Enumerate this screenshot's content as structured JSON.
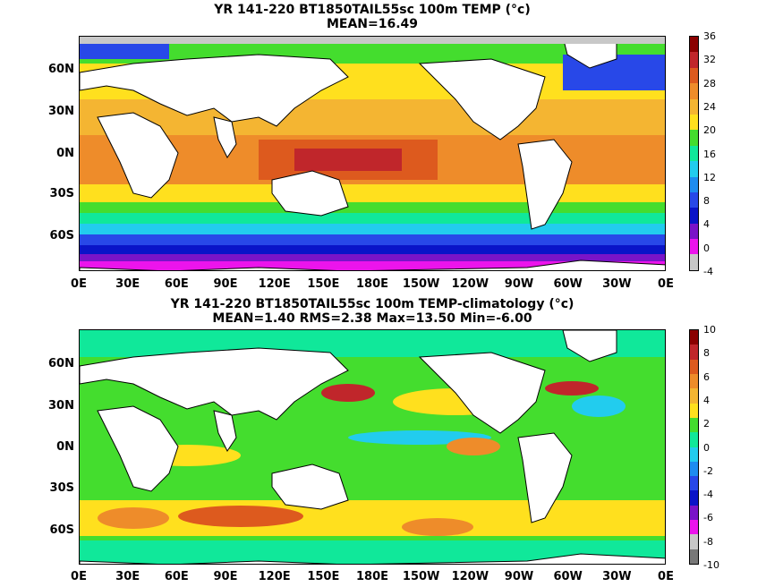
{
  "panels": [
    {
      "title_line1": "YR 141-220 BT1850TAIL55sc 100m TEMP (°c)",
      "title_line2": "MEAN=16.49",
      "colorbar_labels": [
        "36",
        "32",
        "28",
        "24",
        "20",
        "16",
        "12",
        "8",
        "4",
        "0",
        "-4"
      ],
      "colorbar_colors": [
        "#8b0000",
        "#c0262b",
        "#dd5a1e",
        "#ee8c2a",
        "#f4b532",
        "#ffe01e",
        "#44dd2e",
        "#10e89a",
        "#22ccee",
        "#1e8cf0",
        "#2848e8",
        "#0a14c8",
        "#7a14c8",
        "#ec14ec",
        "#c8c8c8"
      ]
    },
    {
      "title_line1": "YR 141-220 BT1850TAIL55sc 100m TEMP-climatology (°c)",
      "title_line2": "MEAN=1.40   RMS=2.38   Max=13.50   Min=-6.00",
      "colorbar_labels": [
        "10",
        "8",
        "6",
        "4",
        "2",
        "0",
        "-2",
        "-4",
        "-6",
        "-8",
        "-10"
      ],
      "colorbar_colors": [
        "#8b0000",
        "#c0262b",
        "#dd5a1e",
        "#ee8c2a",
        "#f4b532",
        "#ffe01e",
        "#44dd2e",
        "#10e89a",
        "#22ccee",
        "#1e8cf0",
        "#2848e8",
        "#0a14c8",
        "#7a14c8",
        "#ec14ec",
        "#c8c8c8",
        "#787878"
      ]
    }
  ],
  "lat_labels": [
    "60N",
    "30N",
    "0N",
    "30S",
    "60S"
  ],
  "lon_labels": [
    "0E",
    "30E",
    "60E",
    "90E",
    "120E",
    "150E",
    "180E",
    "150W",
    "120W",
    "90W",
    "60W",
    "30W",
    "0E"
  ]
}
